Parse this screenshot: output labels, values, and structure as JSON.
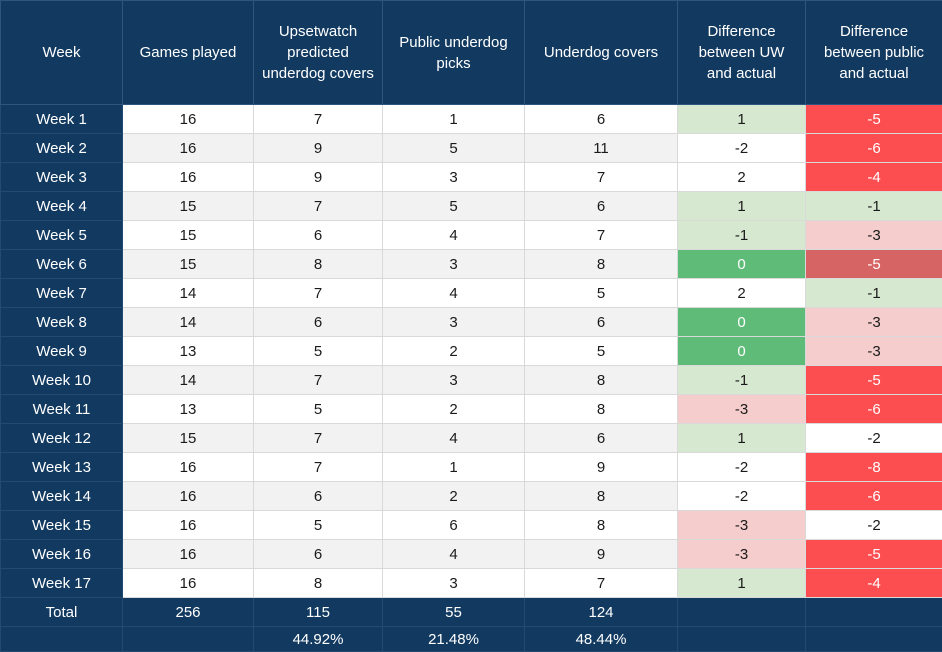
{
  "chart_data": {
    "type": "table",
    "columns": [
      {
        "id": "week",
        "label": "Week"
      },
      {
        "id": "games_played",
        "label": "Games played"
      },
      {
        "id": "uw_predicted",
        "label": "Upsetwatch predicted underdog covers"
      },
      {
        "id": "public_picks",
        "label": "Public underdog picks"
      },
      {
        "id": "underdog_covers",
        "label": "Underdog covers"
      },
      {
        "id": "uw_diff",
        "label": "Difference between UW and actual"
      },
      {
        "id": "public_diff",
        "label": "Difference between public and actual"
      }
    ],
    "rows": [
      {
        "week": "Week 1",
        "games_played": "16",
        "uw_predicted": "7",
        "public_picks": "1",
        "underdog_covers": "6",
        "uw_diff": {
          "value": "1",
          "style": "green-light"
        },
        "public_diff": {
          "value": "-5",
          "style": "red-bright"
        }
      },
      {
        "week": "Week 2",
        "games_played": "16",
        "uw_predicted": "9",
        "public_picks": "5",
        "underdog_covers": "11",
        "uw_diff": {
          "value": "-2",
          "style": "white"
        },
        "public_diff": {
          "value": "-6",
          "style": "red-bright"
        }
      },
      {
        "week": "Week 3",
        "games_played": "16",
        "uw_predicted": "9",
        "public_picks": "3",
        "underdog_covers": "7",
        "uw_diff": {
          "value": "2",
          "style": "white"
        },
        "public_diff": {
          "value": "-4",
          "style": "red-bright"
        }
      },
      {
        "week": "Week 4",
        "games_played": "15",
        "uw_predicted": "7",
        "public_picks": "5",
        "underdog_covers": "6",
        "uw_diff": {
          "value": "1",
          "style": "green-light"
        },
        "public_diff": {
          "value": "-1",
          "style": "green-light"
        }
      },
      {
        "week": "Week 5",
        "games_played": "15",
        "uw_predicted": "6",
        "public_picks": "4",
        "underdog_covers": "7",
        "uw_diff": {
          "value": "-1",
          "style": "green-light"
        },
        "public_diff": {
          "value": "-3",
          "style": "pink"
        }
      },
      {
        "week": "Week 6",
        "games_played": "15",
        "uw_predicted": "8",
        "public_picks": "3",
        "underdog_covers": "8",
        "uw_diff": {
          "value": "0",
          "style": "green"
        },
        "public_diff": {
          "value": "-5",
          "style": "red-muted"
        }
      },
      {
        "week": "Week 7",
        "games_played": "14",
        "uw_predicted": "7",
        "public_picks": "4",
        "underdog_covers": "5",
        "uw_diff": {
          "value": "2",
          "style": "white"
        },
        "public_diff": {
          "value": "-1",
          "style": "green-light"
        }
      },
      {
        "week": "Week 8",
        "games_played": "14",
        "uw_predicted": "6",
        "public_picks": "3",
        "underdog_covers": "6",
        "uw_diff": {
          "value": "0",
          "style": "green"
        },
        "public_diff": {
          "value": "-3",
          "style": "pink"
        }
      },
      {
        "week": "Week 9",
        "games_played": "13",
        "uw_predicted": "5",
        "public_picks": "2",
        "underdog_covers": "5",
        "uw_diff": {
          "value": "0",
          "style": "green"
        },
        "public_diff": {
          "value": "-3",
          "style": "pink"
        }
      },
      {
        "week": "Week 10",
        "games_played": "14",
        "uw_predicted": "7",
        "public_picks": "3",
        "underdog_covers": "8",
        "uw_diff": {
          "value": "-1",
          "style": "green-light"
        },
        "public_diff": {
          "value": "-5",
          "style": "red-bright"
        }
      },
      {
        "week": "Week 11",
        "games_played": "13",
        "uw_predicted": "5",
        "public_picks": "2",
        "underdog_covers": "8",
        "uw_diff": {
          "value": "-3",
          "style": "pink"
        },
        "public_diff": {
          "value": "-6",
          "style": "red-bright"
        }
      },
      {
        "week": "Week 12",
        "games_played": "15",
        "uw_predicted": "7",
        "public_picks": "4",
        "underdog_covers": "6",
        "uw_diff": {
          "value": "1",
          "style": "green-light"
        },
        "public_diff": {
          "value": "-2",
          "style": "white"
        }
      },
      {
        "week": "Week 13",
        "games_played": "16",
        "uw_predicted": "7",
        "public_picks": "1",
        "underdog_covers": "9",
        "uw_diff": {
          "value": "-2",
          "style": "white"
        },
        "public_diff": {
          "value": "-8",
          "style": "red-bright"
        }
      },
      {
        "week": "Week 14",
        "games_played": "16",
        "uw_predicted": "6",
        "public_picks": "2",
        "underdog_covers": "8",
        "uw_diff": {
          "value": "-2",
          "style": "white"
        },
        "public_diff": {
          "value": "-6",
          "style": "red-bright"
        }
      },
      {
        "week": "Week 15",
        "games_played": "16",
        "uw_predicted": "5",
        "public_picks": "6",
        "underdog_covers": "8",
        "uw_diff": {
          "value": "-3",
          "style": "pink"
        },
        "public_diff": {
          "value": "-2",
          "style": "white"
        }
      },
      {
        "week": "Week 16",
        "games_played": "16",
        "uw_predicted": "6",
        "public_picks": "4",
        "underdog_covers": "9",
        "uw_diff": {
          "value": "-3",
          "style": "pink"
        },
        "public_diff": {
          "value": "-5",
          "style": "red-bright"
        }
      },
      {
        "week": "Week 17",
        "games_played": "16",
        "uw_predicted": "8",
        "public_picks": "3",
        "underdog_covers": "7",
        "uw_diff": {
          "value": "1",
          "style": "green-light"
        },
        "public_diff": {
          "value": "-4",
          "style": "red-bright"
        }
      }
    ],
    "total_row": {
      "week": "Total",
      "games_played": "256",
      "uw_predicted": "115",
      "public_picks": "55",
      "underdog_covers": "124",
      "uw_diff": "",
      "public_diff": ""
    },
    "pct_row": {
      "week": "",
      "games_played": "",
      "uw_predicted": "44.92%",
      "public_picks": "21.48%",
      "underdog_covers": "48.44%",
      "uw_diff": "",
      "public_diff": ""
    },
    "layout": {
      "grid": "on",
      "row_banding": "alternating",
      "header_position": "top"
    }
  },
  "colors": {
    "header_navy": "#123a60",
    "band_gray": "#f2f2f2",
    "grid_line": "#d9d9d9",
    "green_strong": "#5fbc78",
    "green_light": "#d7e8d0",
    "red_bright": "#fc4d50",
    "red_muted": "#d66465",
    "pink_light": "#f5cdcc",
    "text_dark": "#1a1a1a",
    "text_light": "#ffffff"
  }
}
